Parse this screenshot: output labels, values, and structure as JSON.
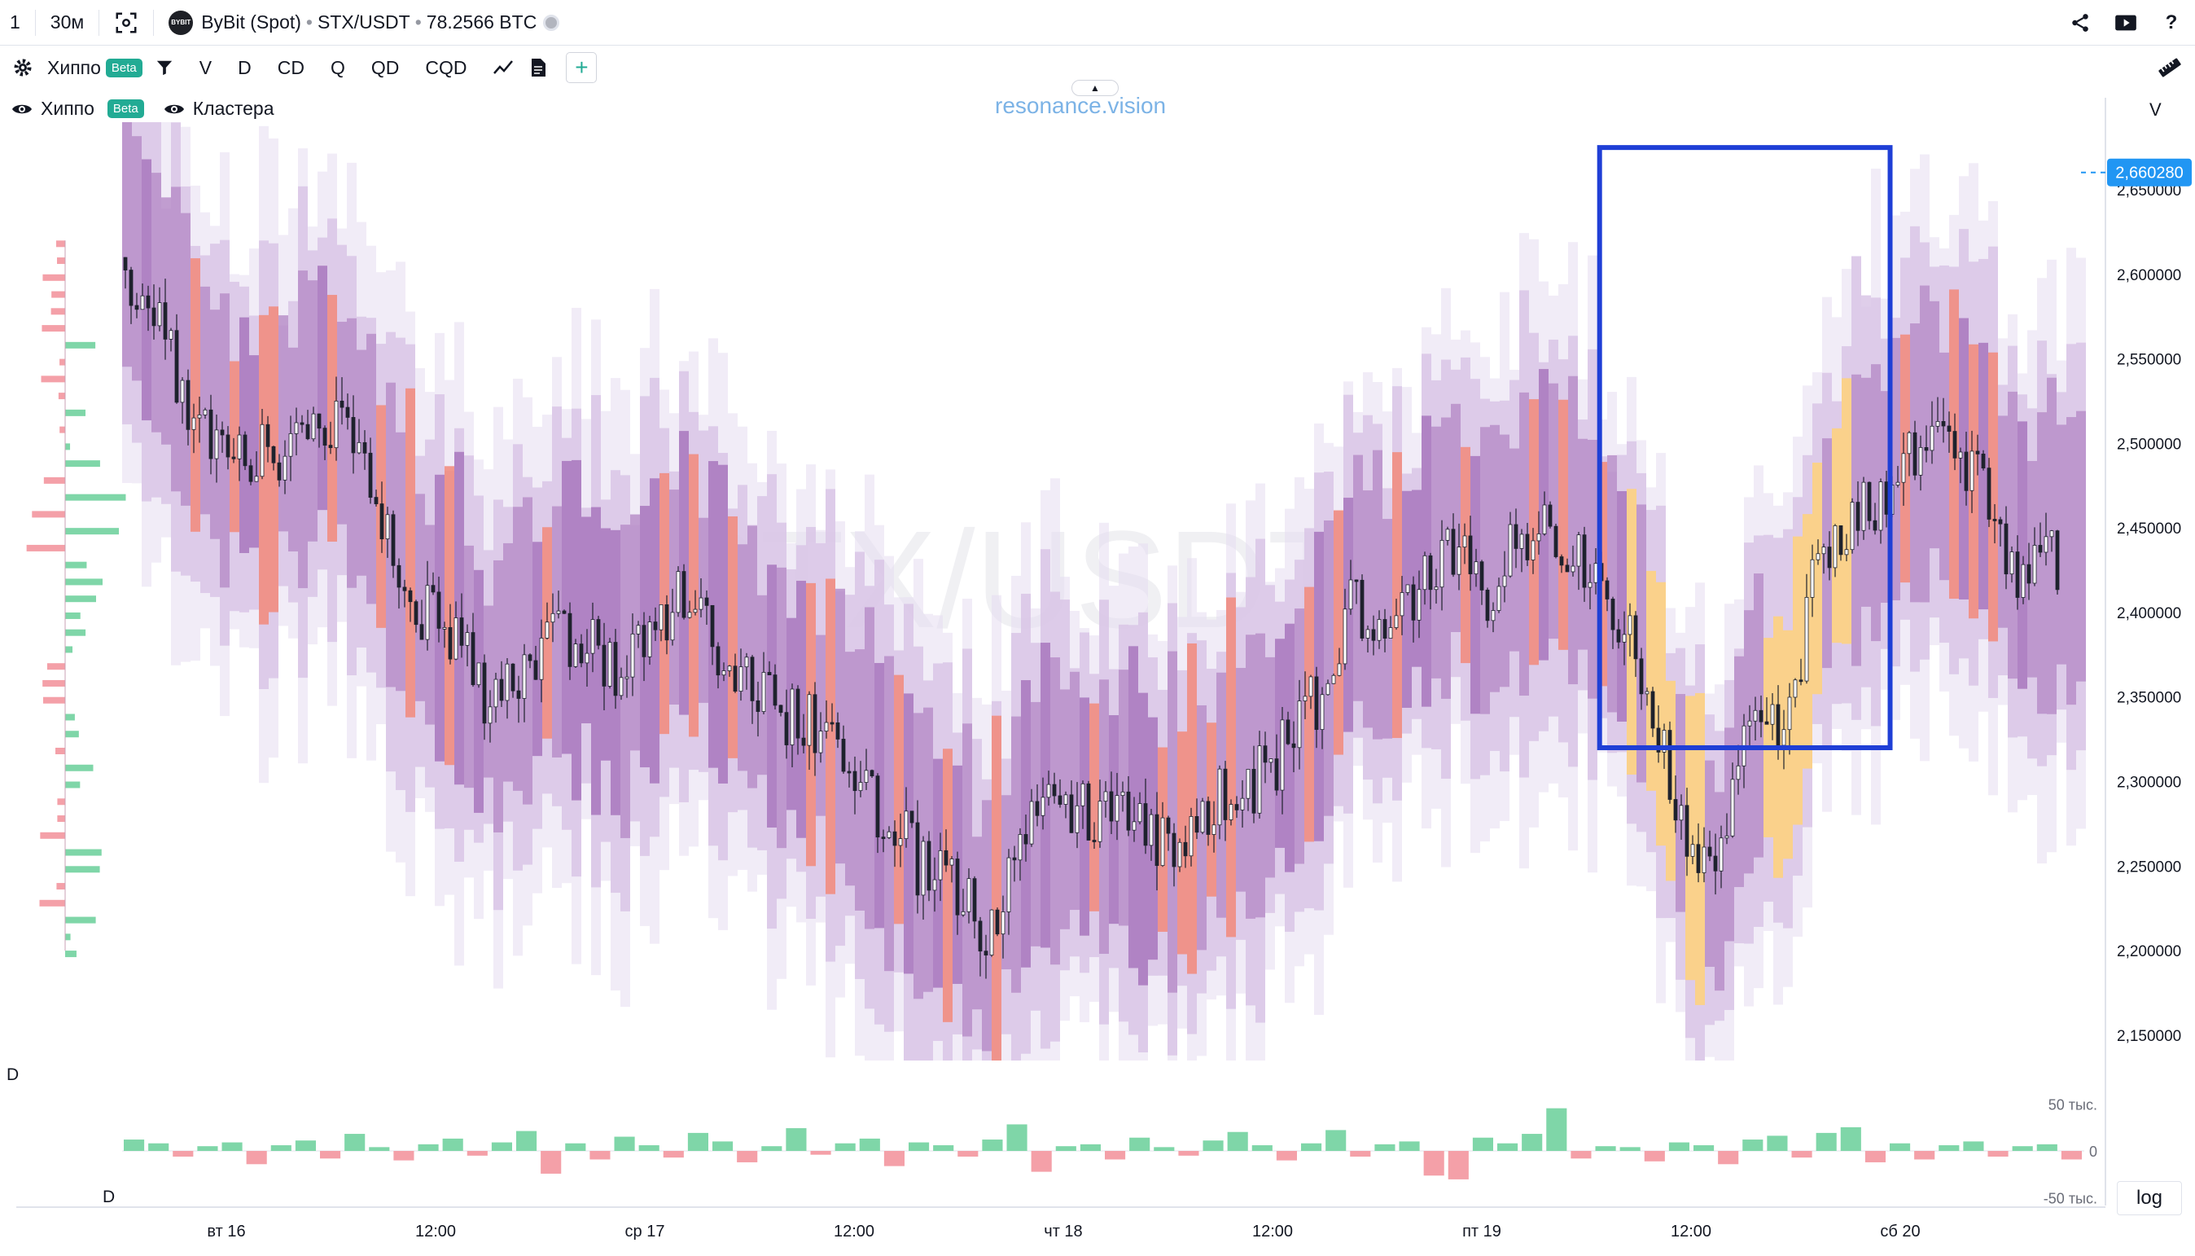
{
  "topbar": {
    "layout_num": "1",
    "interval": "30м",
    "exchange_logo_text": "BYBIT",
    "exchange": "ByBit (Spot)",
    "symbol": "STX/USDT",
    "volume": "78.2566 BTC"
  },
  "toolbar": {
    "indicator_name": "Хиппо",
    "beta_label": "Beta",
    "buttons": [
      "V",
      "D",
      "CD",
      "Q",
      "QD",
      "CQD"
    ],
    "plus_label": "+"
  },
  "legend": {
    "hippo_label": "Хиппо",
    "beta_label": "Beta",
    "clusters_label": "Кластера"
  },
  "brand": "resonance.vision",
  "chart_watermark": "STX/USDT",
  "scale_label": "V",
  "log_label": "log",
  "current_price": "2,660280",
  "colors": {
    "accent": "#2962ff",
    "price_tag": "#2196f3",
    "buy": "#7fd6a8",
    "sell": "#f4a0a8",
    "heat_low": "#e6ddf0",
    "heat_mid": "#b98fc9",
    "heat_high": "#f28a7a",
    "heat_peak": "#ffd27a",
    "highlight_box": "#1f3fd6"
  },
  "chart_data": [
    {
      "type": "heatmap",
      "title": "",
      "xlabel": "",
      "ylabel": "",
      "x_ticks": [
        "вт 16",
        "12:00",
        "ср 17",
        "12:00",
        "чт 18",
        "12:00",
        "пт 19",
        "12:00",
        "сб 20"
      ],
      "y_ticks": [
        2.15,
        2.2,
        2.25,
        2.3,
        2.35,
        2.4,
        2.45,
        2.5,
        2.55,
        2.6,
        2.65
      ],
      "y_tick_labels": [
        "2,150000",
        "2,200000",
        "2,250000",
        "2,300000",
        "2,350000",
        "2,400000",
        "2,450000",
        "2,500000",
        "2,550000",
        "2,600000",
        "2,650000"
      ],
      "ylim": [
        2.135,
        2.69
      ],
      "price_series": {
        "x": [
          0,
          4,
          8,
          12,
          16,
          20,
          24,
          28,
          32,
          36,
          40,
          44,
          48,
          52,
          56,
          60,
          64,
          68,
          72,
          76,
          80,
          84,
          88,
          92,
          96,
          100,
          104,
          108,
          112,
          116,
          120,
          124,
          128,
          132,
          136,
          140,
          144,
          148,
          152,
          156,
          160,
          164,
          168,
          172,
          176,
          180,
          184,
          188,
          192,
          196,
          200,
          204,
          208,
          212,
          216,
          220,
          224,
          228,
          232,
          236
        ],
        "y": [
          2.61,
          2.57,
          2.52,
          2.5,
          2.49,
          2.5,
          2.52,
          2.49,
          2.44,
          2.4,
          2.38,
          2.35,
          2.37,
          2.39,
          2.38,
          2.36,
          2.4,
          2.41,
          2.38,
          2.36,
          2.34,
          2.33,
          2.3,
          2.28,
          2.25,
          2.24,
          2.21,
          2.27,
          2.29,
          2.28,
          2.28,
          2.26,
          2.27,
          2.29,
          2.3,
          2.32,
          2.35,
          2.41,
          2.39,
          2.42,
          2.44,
          2.41,
          2.44,
          2.45,
          2.43,
          2.4,
          2.35,
          2.26,
          2.24,
          2.34,
          2.32,
          2.43,
          2.46,
          2.47,
          2.5,
          2.49,
          2.48,
          2.42,
          2.43,
          2.44
        ]
      },
      "highlight": {
        "x_from": 178,
        "x_to": 213,
        "y_from": 2.32,
        "y_to": 2.675
      }
    },
    {
      "type": "bar",
      "title": "",
      "label": "D",
      "ylim": [
        -55000,
        55000
      ],
      "y_tick_labels": [
        "50 тыс.",
        "0",
        "-50 тыс."
      ],
      "values": [
        12000,
        8000,
        -6000,
        5000,
        9000,
        -14000,
        6000,
        11000,
        -8000,
        18000,
        4000,
        -10000,
        7000,
        13000,
        -5000,
        9000,
        21000,
        -24000,
        8000,
        -9000,
        15000,
        6000,
        -7000,
        19000,
        10000,
        -12000,
        5000,
        24000,
        -4000,
        8000,
        13000,
        -16000,
        9000,
        6000,
        -6000,
        12000,
        28000,
        -22000,
        5000,
        7000,
        -9000,
        14000,
        4000,
        -5000,
        11000,
        20000,
        6000,
        -10000,
        8000,
        22000,
        -6000,
        7000,
        10000,
        -26000,
        -30000,
        14000,
        8000,
        18000,
        45000,
        -8000,
        5000,
        4000,
        -11000,
        9000,
        6000,
        -14000,
        12000,
        16000,
        -7000,
        19000,
        25000,
        -12000,
        8000,
        -9000,
        6000,
        10000,
        -6000,
        5000,
        7000,
        -9000
      ]
    }
  ]
}
